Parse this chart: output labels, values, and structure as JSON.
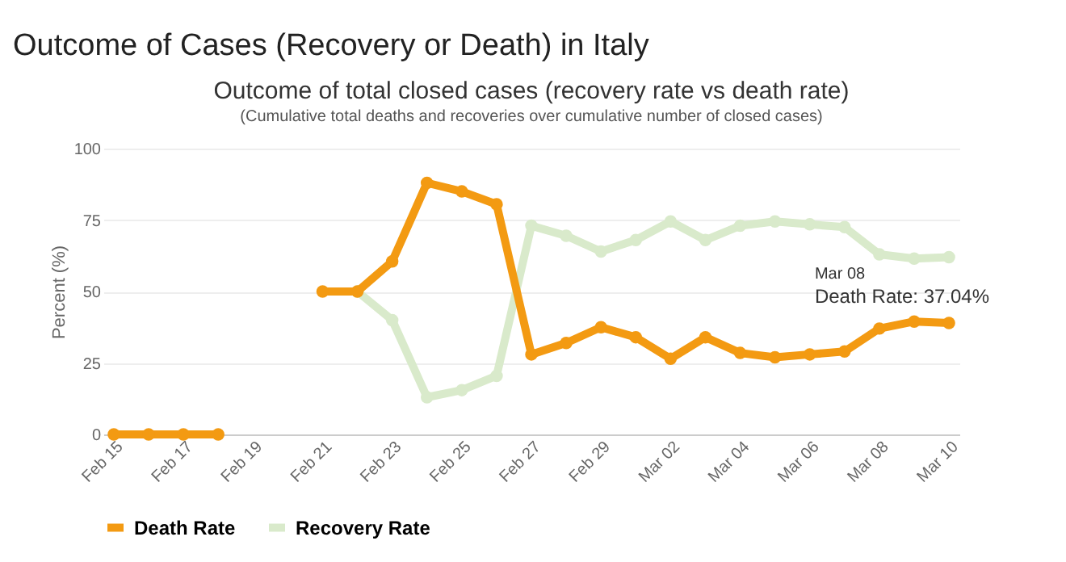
{
  "chart_data": {
    "type": "line",
    "title": "Outcome of Cases (Recovery or Death) in Italy",
    "subtitle": "Outcome of total closed cases (recovery rate vs death rate)",
    "annotations": [
      "(Cumulative total deaths and recoveries over cumulative number of closed cases)",
      "Mar 08",
      {
        "text": "Death Rate: 37.04%",
        "x": "Mar 08",
        "y": 37.04
      }
    ],
    "categories": [
      "Feb 15",
      null,
      "Feb 17",
      null,
      "Feb 19",
      null,
      "Feb 21",
      null,
      "Feb 23",
      null,
      "Feb 25",
      null,
      "Feb 27",
      null,
      "Feb 29",
      null,
      "Mar 02",
      null,
      "Mar 04",
      null,
      "Mar 06",
      null,
      "Mar 08",
      null,
      "Mar 10"
    ],
    "series": [
      {
        "name": "Death Rate",
        "color": "#f39a12",
        "values": [
          0,
          0,
          0,
          0,
          null,
          null,
          50,
          50,
          60.5,
          88,
          85,
          80.5,
          28,
          32,
          37.5,
          34,
          26.5,
          34,
          28.5,
          27,
          28,
          29,
          37.04,
          39.5,
          39
        ]
      },
      {
        "name": "Recovery Rate",
        "color": "#d9eacb",
        "values": [
          null,
          null,
          null,
          null,
          null,
          null,
          null,
          50,
          40,
          13,
          15.5,
          20.5,
          73,
          69.5,
          64,
          68,
          74.5,
          68,
          73,
          74.5,
          73.5,
          72.5,
          63,
          61.5,
          62
        ]
      }
    ],
    "ylabel": "Percent (%)",
    "ylim": [
      0,
      100
    ],
    "yticks": [
      0,
      25,
      50,
      75,
      100
    ],
    "grid": "y",
    "legend": "bottom",
    "marker": "circle"
  }
}
